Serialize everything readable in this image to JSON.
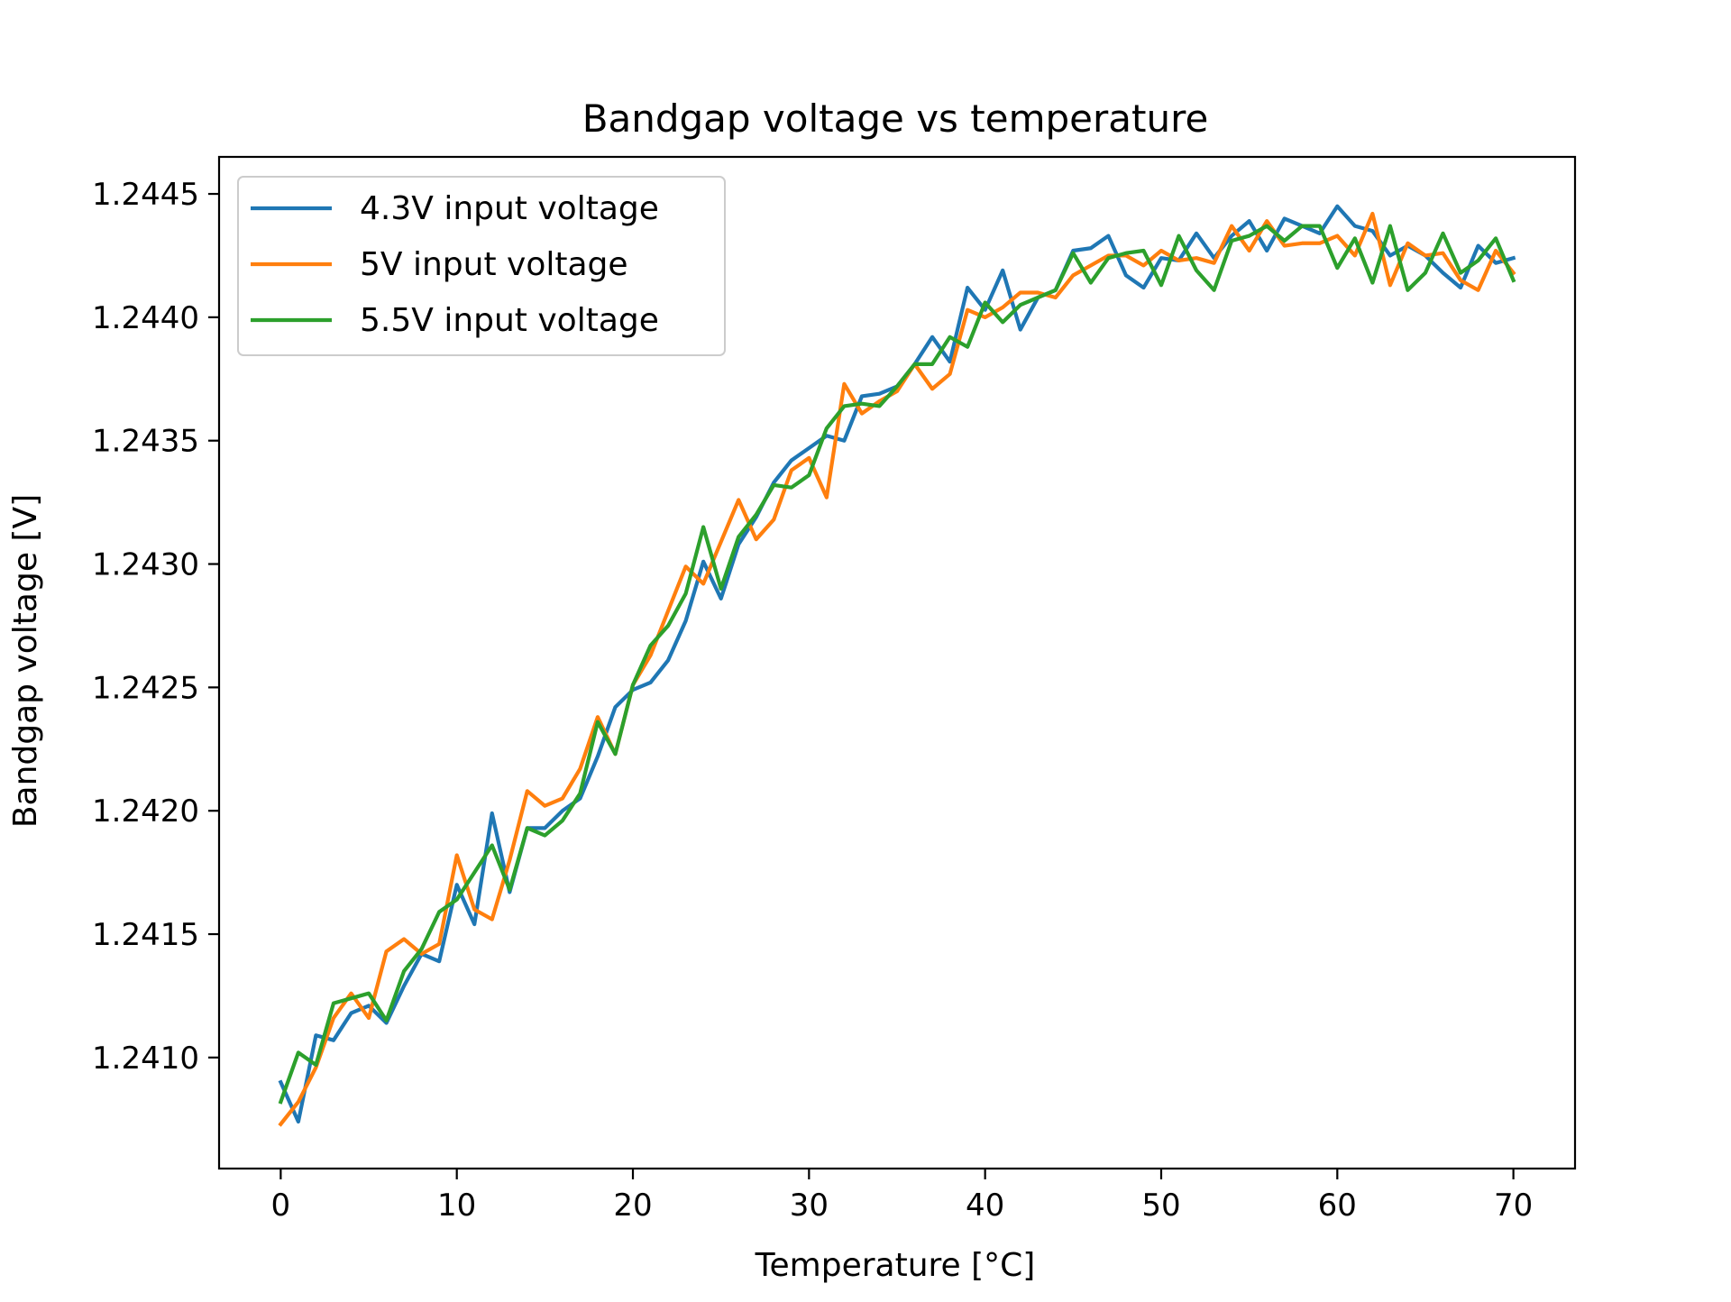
{
  "chart_data": {
    "type": "line",
    "title": "Bandgap voltage vs temperature",
    "xlabel": "Temperature [°C]",
    "ylabel": "Bandgap voltage [V]",
    "xlim": [
      -3.5,
      73.5
    ],
    "ylim": [
      1.24055,
      1.24465
    ],
    "xticks": [
      0,
      10,
      20,
      30,
      40,
      50,
      60,
      70
    ],
    "xtick_labels": [
      "0",
      "10",
      "20",
      "30",
      "40",
      "50",
      "60",
      "70"
    ],
    "yticks": [
      1.241,
      1.2415,
      1.242,
      1.2425,
      1.243,
      1.2435,
      1.244,
      1.2445
    ],
    "ytick_labels": [
      "1.2410",
      "1.2415",
      "1.2420",
      "1.2425",
      "1.2430",
      "1.2435",
      "1.2440",
      "1.2445"
    ],
    "grid": false,
    "legend_position": "top-left",
    "x": [
      0,
      1,
      2,
      3,
      4,
      5,
      6,
      7,
      8,
      9,
      10,
      11,
      12,
      13,
      14,
      15,
      16,
      17,
      18,
      19,
      20,
      21,
      22,
      23,
      24,
      25,
      26,
      27,
      28,
      29,
      30,
      31,
      32,
      33,
      34,
      35,
      36,
      37,
      38,
      39,
      40,
      41,
      42,
      43,
      44,
      45,
      46,
      47,
      48,
      49,
      50,
      51,
      52,
      53,
      54,
      55,
      56,
      57,
      58,
      59,
      60,
      61,
      62,
      63,
      64,
      65,
      66,
      67,
      68,
      69,
      70
    ],
    "series": [
      {
        "name": "4.3V input voltage",
        "color": "#1f77b4",
        "values": [
          1.2409,
          1.24074,
          1.24109,
          1.24107,
          1.24118,
          1.24121,
          1.24114,
          1.24129,
          1.24142,
          1.24139,
          1.2417,
          1.24154,
          1.24199,
          1.24167,
          1.24193,
          1.24193,
          1.242,
          1.24205,
          1.24222,
          1.24242,
          1.24249,
          1.24252,
          1.24261,
          1.24277,
          1.24301,
          1.24286,
          1.24308,
          1.24319,
          1.24333,
          1.24342,
          1.24347,
          1.24352,
          1.2435,
          1.24368,
          1.24369,
          1.24372,
          1.24381,
          1.24392,
          1.24382,
          1.24412,
          1.24403,
          1.24419,
          1.24395,
          1.24408,
          1.24411,
          1.24427,
          1.24428,
          1.24433,
          1.24417,
          1.24412,
          1.24424,
          1.24423,
          1.24434,
          1.24424,
          1.24433,
          1.24439,
          1.24427,
          1.2444,
          1.24437,
          1.24434,
          1.24445,
          1.24437,
          1.24435,
          1.24425,
          1.24429,
          1.24425,
          1.24418,
          1.24412,
          1.24429,
          1.24422,
          1.24424
        ]
      },
      {
        "name": "5V input voltage",
        "color": "#ff7f0e",
        "values": [
          1.24073,
          1.24082,
          1.24096,
          1.24116,
          1.24126,
          1.24116,
          1.24143,
          1.24148,
          1.24142,
          1.24146,
          1.24182,
          1.2416,
          1.24156,
          1.2418,
          1.24208,
          1.24202,
          1.24205,
          1.24217,
          1.24238,
          1.24223,
          1.24251,
          1.24263,
          1.24281,
          1.24299,
          1.24292,
          1.24309,
          1.24326,
          1.2431,
          1.24318,
          1.24338,
          1.24343,
          1.24327,
          1.24373,
          1.24361,
          1.24366,
          1.2437,
          1.24381,
          1.24371,
          1.24377,
          1.24403,
          1.244,
          1.24404,
          1.2441,
          1.2441,
          1.24408,
          1.24417,
          1.24421,
          1.24425,
          1.24425,
          1.24421,
          1.24427,
          1.24423,
          1.24424,
          1.24422,
          1.24437,
          1.24427,
          1.24439,
          1.24429,
          1.2443,
          1.2443,
          1.24433,
          1.24425,
          1.24442,
          1.24413,
          1.2443,
          1.24425,
          1.24426,
          1.24415,
          1.24411,
          1.24427,
          1.24418
        ]
      },
      {
        "name": "5.5V input voltage",
        "color": "#2ca02c",
        "values": [
          1.24082,
          1.24102,
          1.24097,
          1.24122,
          1.24124,
          1.24126,
          1.24115,
          1.24135,
          1.24144,
          1.24159,
          1.24164,
          1.24175,
          1.24186,
          1.24168,
          1.24193,
          1.2419,
          1.24196,
          1.24207,
          1.24236,
          1.24223,
          1.24251,
          1.24267,
          1.24275,
          1.24288,
          1.24315,
          1.2429,
          1.24311,
          1.2432,
          1.24332,
          1.24331,
          1.24336,
          1.24355,
          1.24364,
          1.24365,
          1.24364,
          1.24372,
          1.24381,
          1.24381,
          1.24392,
          1.24388,
          1.24406,
          1.24398,
          1.24405,
          1.24408,
          1.24411,
          1.24426,
          1.24414,
          1.24424,
          1.24426,
          1.24427,
          1.24413,
          1.24433,
          1.24419,
          1.24411,
          1.24431,
          1.24433,
          1.24437,
          1.24431,
          1.24437,
          1.24437,
          1.2442,
          1.24432,
          1.24414,
          1.24437,
          1.24411,
          1.24418,
          1.24434,
          1.24418,
          1.24423,
          1.24432,
          1.24415
        ]
      }
    ]
  }
}
